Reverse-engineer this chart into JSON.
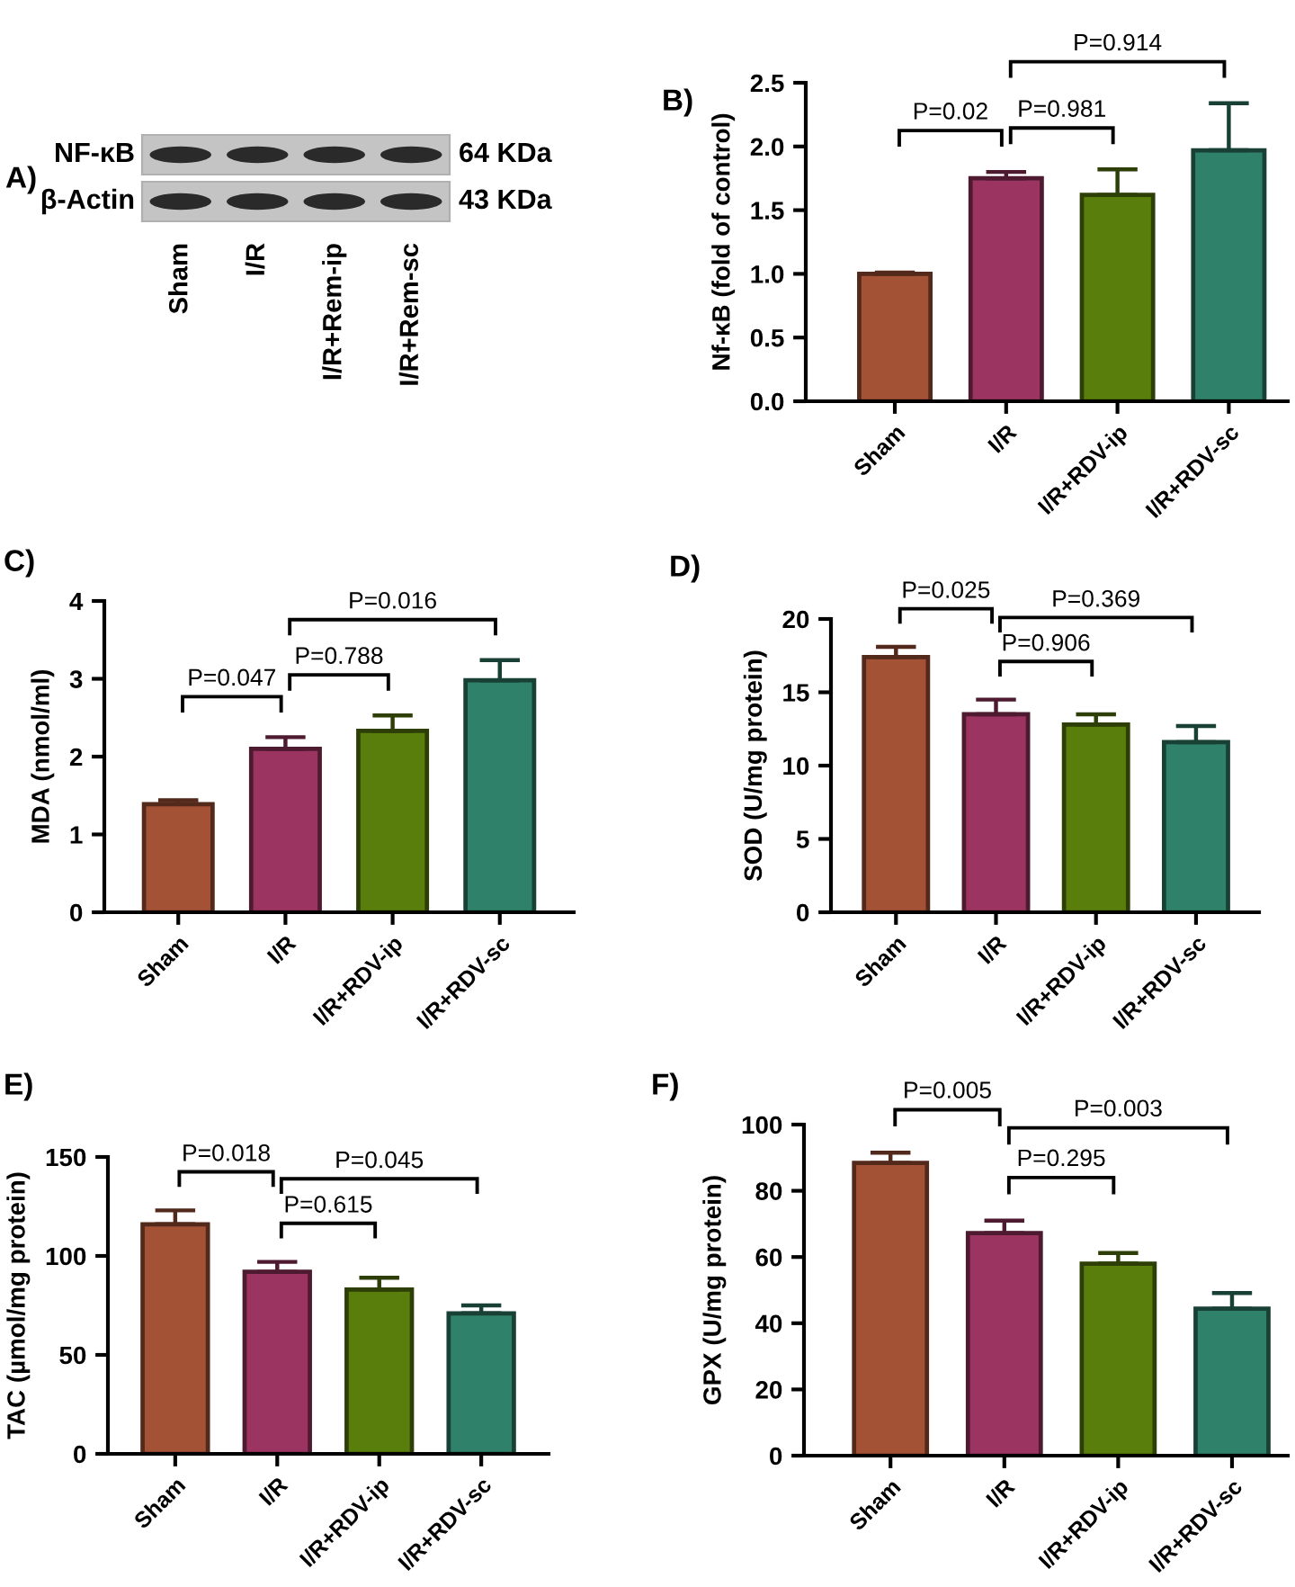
{
  "chart_data": [
    {
      "type": "other",
      "title": "A)",
      "categories": [
        "Sham",
        "I/R",
        "I/R+Rem-ip",
        "I/R+Rem-sc"
      ],
      "y_categories": [
        "NF-κB",
        "β-Actin"
      ],
      "y2_categories": [
        "64 KDa",
        "43 KDa"
      ]
    },
    {
      "type": "bar",
      "title": "B)",
      "ylabel": "Nf-κB (fold of control)",
      "categories": [
        "Sham",
        "I/R",
        "I/R+RDV-ip",
        "I/R+RDV-sc"
      ],
      "values": [
        1.0,
        1.75,
        1.62,
        1.97
      ],
      "colors": [
        "#a35236",
        "#9c3461",
        "#5a7e0b",
        "#2f8169"
      ],
      "errors": [
        [
          1.0,
          1.01
        ],
        [
          1.75,
          1.8
        ],
        [
          1.62,
          1.82
        ],
        [
          1.97,
          2.34
        ]
      ],
      "ylim": [
        0,
        2.5
      ],
      "yticks": [
        {
          "value": 0,
          "label": "0.0"
        },
        0.5,
        {
          "value": 1,
          "label": "1.0"
        },
        1.5,
        {
          "value": 2,
          "label": "2.0"
        },
        2.5
      ],
      "annotations": [
        "P=0.02",
        "P=0.981",
        "P=0.914"
      ]
    },
    {
      "type": "bar",
      "title": "C)",
      "ylabel": "MDA (nmol/ml)",
      "categories": [
        "Sham",
        "I/R",
        "I/R+RDV-ip",
        "I/R+RDV-sc"
      ],
      "values": [
        1.39,
        2.1,
        2.33,
        2.98
      ],
      "colors": [
        "#a35236",
        "#9c3461",
        "#5a7e0b",
        "#2f8169"
      ],
      "errors": [
        [
          1.39,
          1.44
        ],
        [
          2.1,
          2.25
        ],
        [
          2.33,
          2.53
        ],
        [
          2.98,
          3.24
        ]
      ],
      "ylim": [
        0,
        4
      ],
      "yticks": [
        0,
        1,
        2,
        3,
        4
      ],
      "annotations": [
        "P=0.047",
        "P=0.788",
        "P=0.016"
      ]
    },
    {
      "type": "bar",
      "title": "D)",
      "ylabel": "SOD (U/mg protein)",
      "categories": [
        "Sham",
        "I/R",
        "I/R+RDV-ip",
        "I/R+RDV-sc"
      ],
      "values": [
        17.4,
        13.5,
        12.8,
        11.6
      ],
      "colors": [
        "#a35236",
        "#9c3461",
        "#5a7e0b",
        "#2f8169"
      ],
      "errors": [
        [
          17.4,
          18.1
        ],
        [
          13.5,
          14.5
        ],
        [
          12.8,
          13.5
        ],
        [
          11.6,
          12.7
        ]
      ],
      "ylim": [
        0,
        20
      ],
      "yticks": [
        0,
        5,
        10,
        15,
        20
      ],
      "annotations": [
        "P=0.025",
        "P=0.906",
        "P=0.369"
      ]
    },
    {
      "type": "bar",
      "title": "E)",
      "ylabel": "TAC (µmol/mg protein)",
      "categories": [
        "Sham",
        "I/R",
        "I/R+RDV-ip",
        "I/R+RDV-sc"
      ],
      "values": [
        116,
        92,
        83,
        71
      ],
      "colors": [
        "#a35236",
        "#9c3461",
        "#5a7e0b",
        "#2f8169"
      ],
      "errors": [
        [
          116,
          123
        ],
        [
          92,
          97
        ],
        [
          83,
          89
        ],
        [
          71,
          75
        ]
      ],
      "ylim": [
        0,
        150
      ],
      "yticks": [
        0,
        50,
        100,
        150
      ],
      "annotations": [
        "P=0.018",
        "P=0.615",
        "P=0.045"
      ]
    },
    {
      "type": "bar",
      "title": "F)",
      "ylabel": "GPX (U/mg protein)",
      "categories": [
        "Sham",
        "I/R",
        "I/R+RDV-ip",
        "I/R+RDV-sc"
      ],
      "values": [
        88.4,
        67.2,
        58.0,
        44.4
      ],
      "colors": [
        "#a35236",
        "#9c3461",
        "#5a7e0b",
        "#2f8169"
      ],
      "errors": [
        [
          88.4,
          91.5
        ],
        [
          67.2,
          71.0
        ],
        [
          58.0,
          61.2
        ],
        [
          44.4,
          49.1
        ]
      ],
      "ylim": [
        0,
        100
      ],
      "yticks": [
        0,
        20,
        40,
        60,
        80,
        100
      ],
      "annotations": [
        "P=0.005",
        "P=0.295",
        "P=0.003"
      ]
    }
  ]
}
